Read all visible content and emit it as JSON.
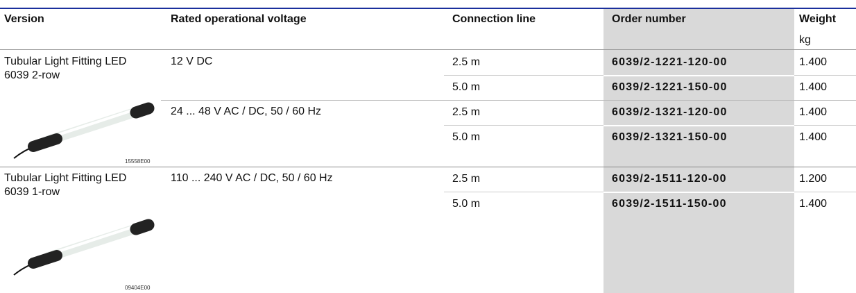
{
  "table": {
    "headers": [
      "Version",
      "Rated operational voltage",
      "Connection line",
      "Order number",
      "Weight"
    ],
    "weight_unit": "kg",
    "groups": [
      {
        "version": "Tubular Light Fitting LED 6039 2-row",
        "image_code": "15558E00",
        "voltages": [
          {
            "voltage": "12 V DC",
            "rows": [
              {
                "line": "2.5 m",
                "order": "6039/2-1221-120-00",
                "weight": "1.400"
              },
              {
                "line": "5.0 m",
                "order": "6039/2-1221-150-00",
                "weight": "1.400"
              }
            ]
          },
          {
            "voltage": "24 ... 48 V AC / DC, 50 / 60 Hz",
            "rows": [
              {
                "line": "2.5 m",
                "order": "6039/2-1321-120-00",
                "weight": "1.400"
              },
              {
                "line": "5.0 m",
                "order": "6039/2-1321-150-00",
                "weight": "1.400"
              }
            ]
          }
        ]
      },
      {
        "version": "Tubular Light Fitting LED 6039 1-row",
        "image_code": "09404E00",
        "voltages": [
          {
            "voltage": "110 ... 240 V AC / DC, 50 / 60 Hz",
            "rows": [
              {
                "line": "2.5 m",
                "order": "6039/2-1511-120-00",
                "weight": "1.200"
              },
              {
                "line": "5.0 m",
                "order": "6039/2-1511-150-00",
                "weight": "1.400"
              }
            ]
          }
        ]
      }
    ]
  }
}
